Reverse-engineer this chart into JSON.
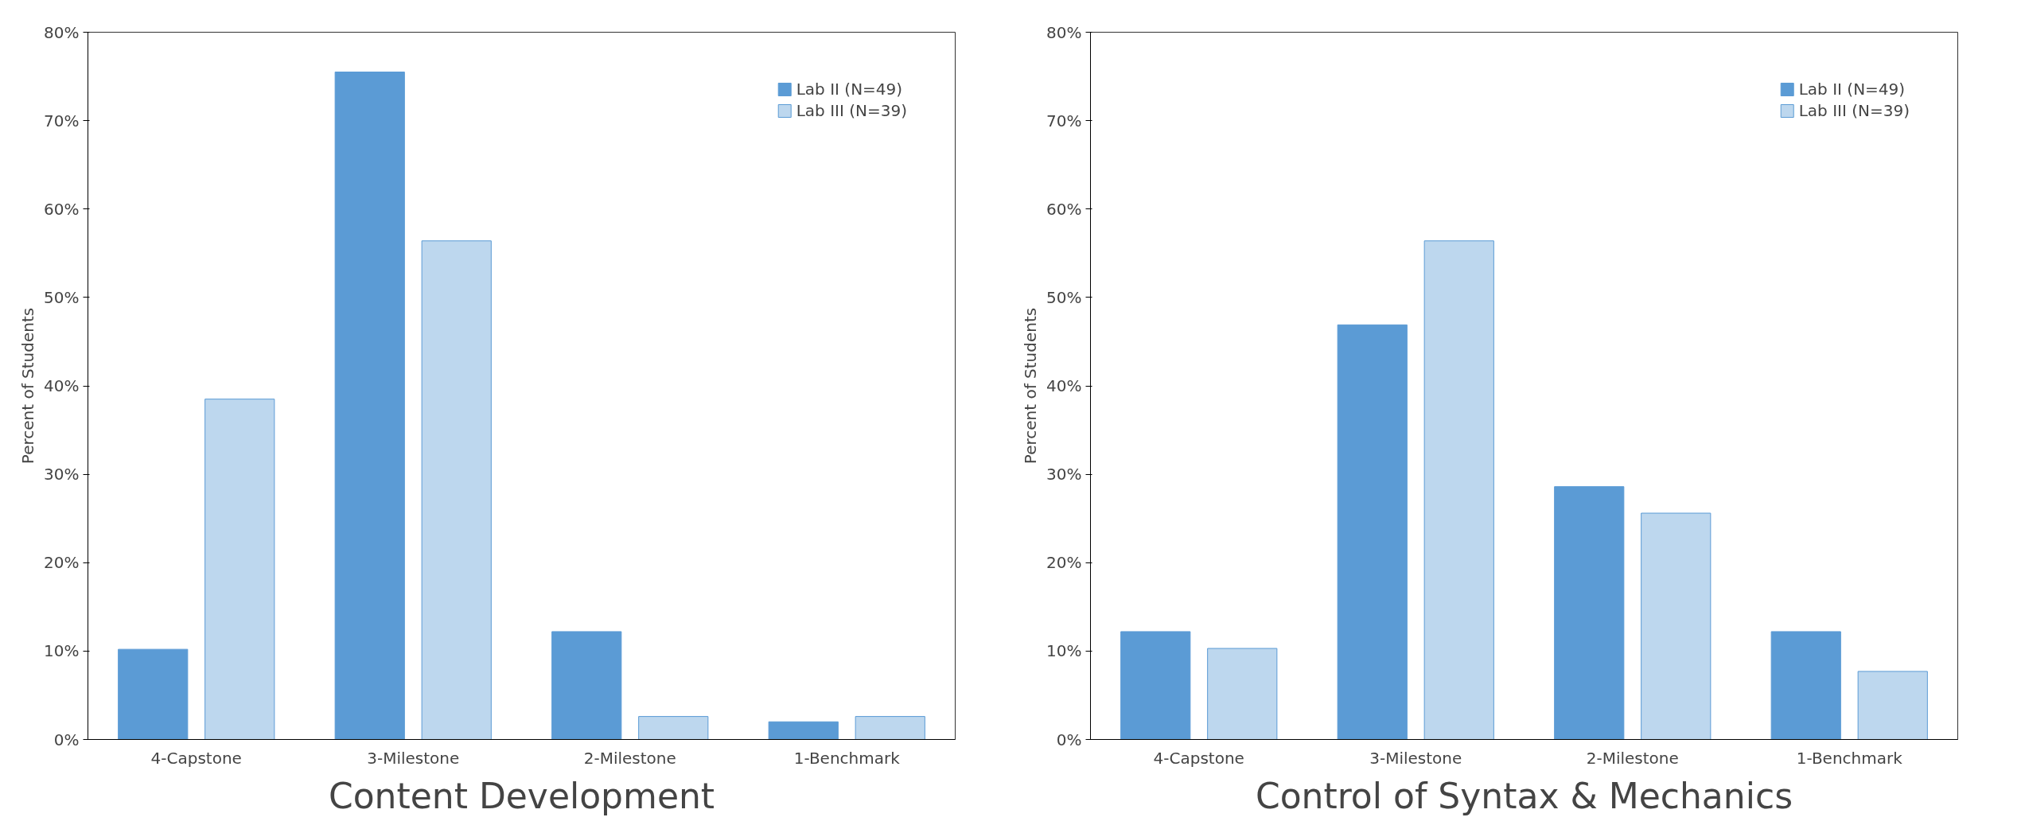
{
  "chart_data": [
    {
      "type": "bar",
      "title": "Content Development",
      "ylabel": "Percent of Students",
      "categories": [
        "4-Capstone",
        "3-Milestone",
        "2-Milestone",
        "1-Benchmark"
      ],
      "series": [
        {
          "name": "Lab II (N=49)",
          "color": "#5b9bd5",
          "values": [
            10.2,
            75.5,
            12.2,
            2.0
          ]
        },
        {
          "name": "Lab III (N=39)",
          "color": "#bdd7ee",
          "values": [
            38.5,
            56.4,
            2.6,
            2.6
          ]
        }
      ],
      "ylim": [
        0,
        80
      ],
      "yticks": [
        {
          "value": 0,
          "label": "0%"
        },
        {
          "value": 10,
          "label": "10%"
        },
        {
          "value": 20,
          "label": "20%"
        },
        {
          "value": 30,
          "label": "30%"
        },
        {
          "value": 40,
          "label": "40%"
        },
        {
          "value": 50,
          "label": "50%"
        },
        {
          "value": 60,
          "label": "60%"
        },
        {
          "value": 70,
          "label": "70%"
        },
        {
          "value": 80,
          "label": "80%"
        }
      ],
      "grid": false,
      "legend": "top right"
    },
    {
      "type": "bar",
      "title": "Control of Syntax & Mechanics",
      "ylabel": "Percent of Students",
      "categories": [
        "4-Capstone",
        "3-Milestone",
        "2-Milestone",
        "1-Benchmark"
      ],
      "series": [
        {
          "name": "Lab II (N=49)",
          "color": "#5b9bd5",
          "values": [
            12.2,
            46.9,
            28.6,
            12.2
          ]
        },
        {
          "name": "Lab III (N=39)",
          "color": "#bdd7ee",
          "values": [
            10.3,
            56.4,
            25.6,
            7.7
          ]
        }
      ],
      "ylim": [
        0,
        80
      ],
      "yticks": [
        {
          "value": 0,
          "label": "0%"
        },
        {
          "value": 10,
          "label": "10%"
        },
        {
          "value": 20,
          "label": "20%"
        },
        {
          "value": 30,
          "label": "30%"
        },
        {
          "value": 40,
          "label": "40%"
        },
        {
          "value": 50,
          "label": "50%"
        },
        {
          "value": 60,
          "label": "60%"
        },
        {
          "value": 70,
          "label": "70%"
        },
        {
          "value": 80,
          "label": "80%"
        }
      ],
      "grid": false,
      "legend": "top right"
    }
  ]
}
